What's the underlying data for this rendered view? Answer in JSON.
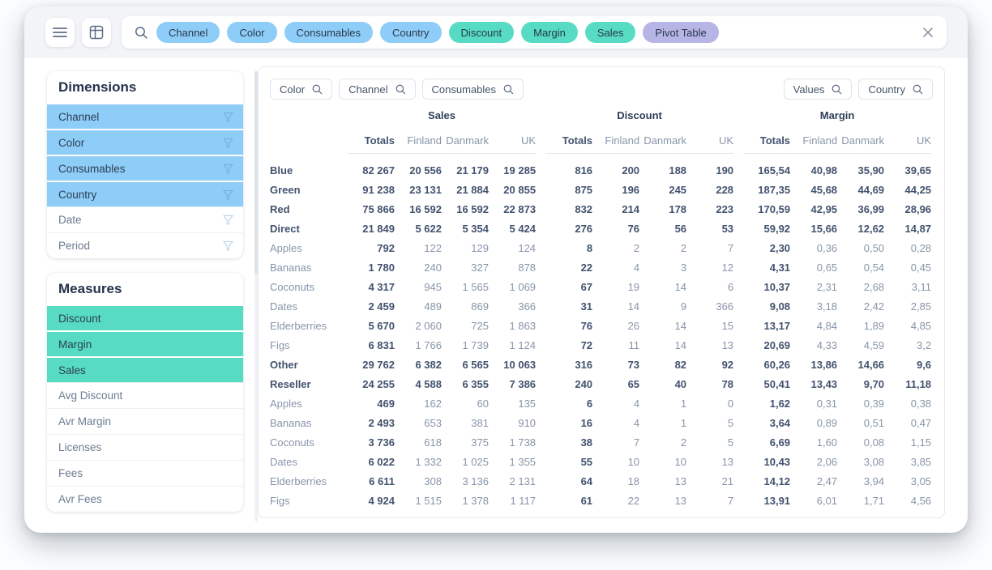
{
  "colors": {
    "dimension": "#8ecdf7",
    "measure": "#57dcc3",
    "view": "#b7b4e6"
  },
  "toolbar": {
    "chips": [
      {
        "label": "Channel",
        "type": "dimension"
      },
      {
        "label": "Color",
        "type": "dimension"
      },
      {
        "label": "Consumables",
        "type": "dimension"
      },
      {
        "label": "Country",
        "type": "dimension"
      },
      {
        "label": "Discount",
        "type": "measure"
      },
      {
        "label": "Margin",
        "type": "measure"
      },
      {
        "label": "Sales",
        "type": "measure"
      },
      {
        "label": "Pivot Table",
        "type": "view"
      }
    ]
  },
  "sidebar": {
    "dimensions": {
      "title": "Dimensions",
      "items": [
        {
          "label": "Channel",
          "selected": true
        },
        {
          "label": "Color",
          "selected": true
        },
        {
          "label": "Consumables",
          "selected": true
        },
        {
          "label": "Country",
          "selected": true
        },
        {
          "label": "Date",
          "selected": false
        },
        {
          "label": "Period",
          "selected": false
        }
      ]
    },
    "measures": {
      "title": "Measures",
      "items": [
        {
          "label": "Discount",
          "selected": true
        },
        {
          "label": "Margin",
          "selected": true
        },
        {
          "label": "Sales",
          "selected": true
        },
        {
          "label": "Avg Discount",
          "selected": false
        },
        {
          "label": "Avr Margin",
          "selected": false
        },
        {
          "label": "Licenses",
          "selected": false
        },
        {
          "label": "Fees",
          "selected": false
        },
        {
          "label": "Avr Fees",
          "selected": false
        }
      ]
    }
  },
  "pivot": {
    "column_filters": [
      "Color",
      "Channel",
      "Consumables"
    ],
    "value_filters": [
      "Values",
      "Country"
    ],
    "groups": [
      "Sales",
      "Discount",
      "Margin"
    ],
    "group_keys": [
      "sales",
      "discount",
      "margin"
    ],
    "subcolumns": [
      "Totals",
      "Finland",
      "Danmark",
      "UK"
    ],
    "rows": [
      {
        "label": "Blue",
        "level": 0,
        "bold": true,
        "sales": [
          "82 267",
          "20 556",
          "21 179",
          "19 285"
        ],
        "discount": [
          "816",
          "200",
          "188",
          "190"
        ],
        "margin": [
          "165,54",
          "40,98",
          "35,90",
          "39,65"
        ]
      },
      {
        "label": "Green",
        "level": 0,
        "bold": true,
        "sales": [
          "91 238",
          "23 131",
          "21 884",
          "20 855"
        ],
        "discount": [
          "875",
          "196",
          "245",
          "228"
        ],
        "margin": [
          "187,35",
          "45,68",
          "44,69",
          "44,25"
        ]
      },
      {
        "label": "Red",
        "level": 0,
        "bold": true,
        "sales": [
          "75 866",
          "16 592",
          "16 592",
          "22 873"
        ],
        "discount": [
          "832",
          "214",
          "178",
          "223"
        ],
        "margin": [
          "170,59",
          "42,95",
          "36,99",
          "28,96"
        ]
      },
      {
        "label": "Direct",
        "level": 1,
        "bold": true,
        "sales": [
          "21 849",
          "5 622",
          "5 354",
          "5 424"
        ],
        "discount": [
          "276",
          "76",
          "56",
          "53"
        ],
        "margin": [
          "59,92",
          "15,66",
          "12,62",
          "14,87"
        ]
      },
      {
        "label": "Apples",
        "level": 2,
        "bold": false,
        "sales": [
          "792",
          "122",
          "129",
          "124"
        ],
        "discount": [
          "8",
          "2",
          "2",
          "7"
        ],
        "margin": [
          "2,30",
          "0,36",
          "0,50",
          "0,28"
        ]
      },
      {
        "label": "Bananas",
        "level": 2,
        "bold": false,
        "sales": [
          "1 780",
          "240",
          "327",
          "878"
        ],
        "discount": [
          "22",
          "4",
          "3",
          "12"
        ],
        "margin": [
          "4,31",
          "0,65",
          "0,54",
          "0,45"
        ]
      },
      {
        "label": "Coconuts",
        "level": 2,
        "bold": false,
        "sales": [
          "4 317",
          "945",
          "1 565",
          "1 069"
        ],
        "discount": [
          "67",
          "19",
          "14",
          "6"
        ],
        "margin": [
          "10,37",
          "2,31",
          "2,68",
          "3,11"
        ]
      },
      {
        "label": "Dates",
        "level": 2,
        "bold": false,
        "sales": [
          "2 459",
          "489",
          "869",
          "366"
        ],
        "discount": [
          "31",
          "14",
          "9",
          "366"
        ],
        "margin": [
          "9,08",
          "3,18",
          "2,42",
          "2,85"
        ]
      },
      {
        "label": "Elderberries",
        "level": 2,
        "bold": false,
        "sales": [
          "5 670",
          "2 060",
          "725",
          "1 863"
        ],
        "discount": [
          "76",
          "26",
          "14",
          "15"
        ],
        "margin": [
          "13,17",
          "4,84",
          "1,89",
          "4,85"
        ]
      },
      {
        "label": "Figs",
        "level": 2,
        "bold": false,
        "sales": [
          "6 831",
          "1 766",
          "1 739",
          "1 124"
        ],
        "discount": [
          "72",
          "11",
          "14",
          "13"
        ],
        "margin": [
          "20,69",
          "4,33",
          "4,59",
          "3,2"
        ]
      },
      {
        "label": "Other",
        "level": 1,
        "bold": true,
        "sales": [
          "29 762",
          "6 382",
          "6 565",
          "10 063"
        ],
        "discount": [
          "316",
          "73",
          "82",
          "92"
        ],
        "margin": [
          "60,26",
          "13,86",
          "14,66",
          "9,6"
        ]
      },
      {
        "label": "Reseller",
        "level": 1,
        "bold": true,
        "sales": [
          "24 255",
          "4 588",
          "6 355",
          "7 386"
        ],
        "discount": [
          "240",
          "65",
          "40",
          "78"
        ],
        "margin": [
          "50,41",
          "13,43",
          "9,70",
          "11,18"
        ]
      },
      {
        "label": "Apples",
        "level": 2,
        "bold": false,
        "sales": [
          "469",
          "162",
          "60",
          "135"
        ],
        "discount": [
          "6",
          "4",
          "1",
          "0"
        ],
        "margin": [
          "1,62",
          "0,31",
          "0,39",
          "0,38"
        ]
      },
      {
        "label": "Bananas",
        "level": 2,
        "bold": false,
        "sales": [
          "2 493",
          "653",
          "381",
          "910"
        ],
        "discount": [
          "16",
          "4",
          "1",
          "5"
        ],
        "margin": [
          "3,64",
          "0,89",
          "0,51",
          "0,47"
        ]
      },
      {
        "label": "Coconuts",
        "level": 2,
        "bold": false,
        "sales": [
          "3 736",
          "618",
          "375",
          "1 738"
        ],
        "discount": [
          "38",
          "7",
          "2",
          "5"
        ],
        "margin": [
          "6,69",
          "1,60",
          "0,08",
          "1,15"
        ]
      },
      {
        "label": "Dates",
        "level": 2,
        "bold": false,
        "sales": [
          "6 022",
          "1 332",
          "1 025",
          "1 355"
        ],
        "discount": [
          "55",
          "10",
          "10",
          "13"
        ],
        "margin": [
          "10,43",
          "2,06",
          "3,08",
          "3,85"
        ]
      },
      {
        "label": "Elderberries",
        "level": 2,
        "bold": false,
        "sales": [
          "6 611",
          "308",
          "3 136",
          "2 131"
        ],
        "discount": [
          "64",
          "18",
          "13",
          "21"
        ],
        "margin": [
          "14,12",
          "2,47",
          "3,94",
          "3,05"
        ]
      },
      {
        "label": "Figs",
        "level": 2,
        "bold": false,
        "sales": [
          "4 924",
          "1 515",
          "1 378",
          "1 117"
        ],
        "discount": [
          "61",
          "22",
          "13",
          "7"
        ],
        "margin": [
          "13,91",
          "6,01",
          "1,71",
          "4,56"
        ]
      }
    ]
  }
}
